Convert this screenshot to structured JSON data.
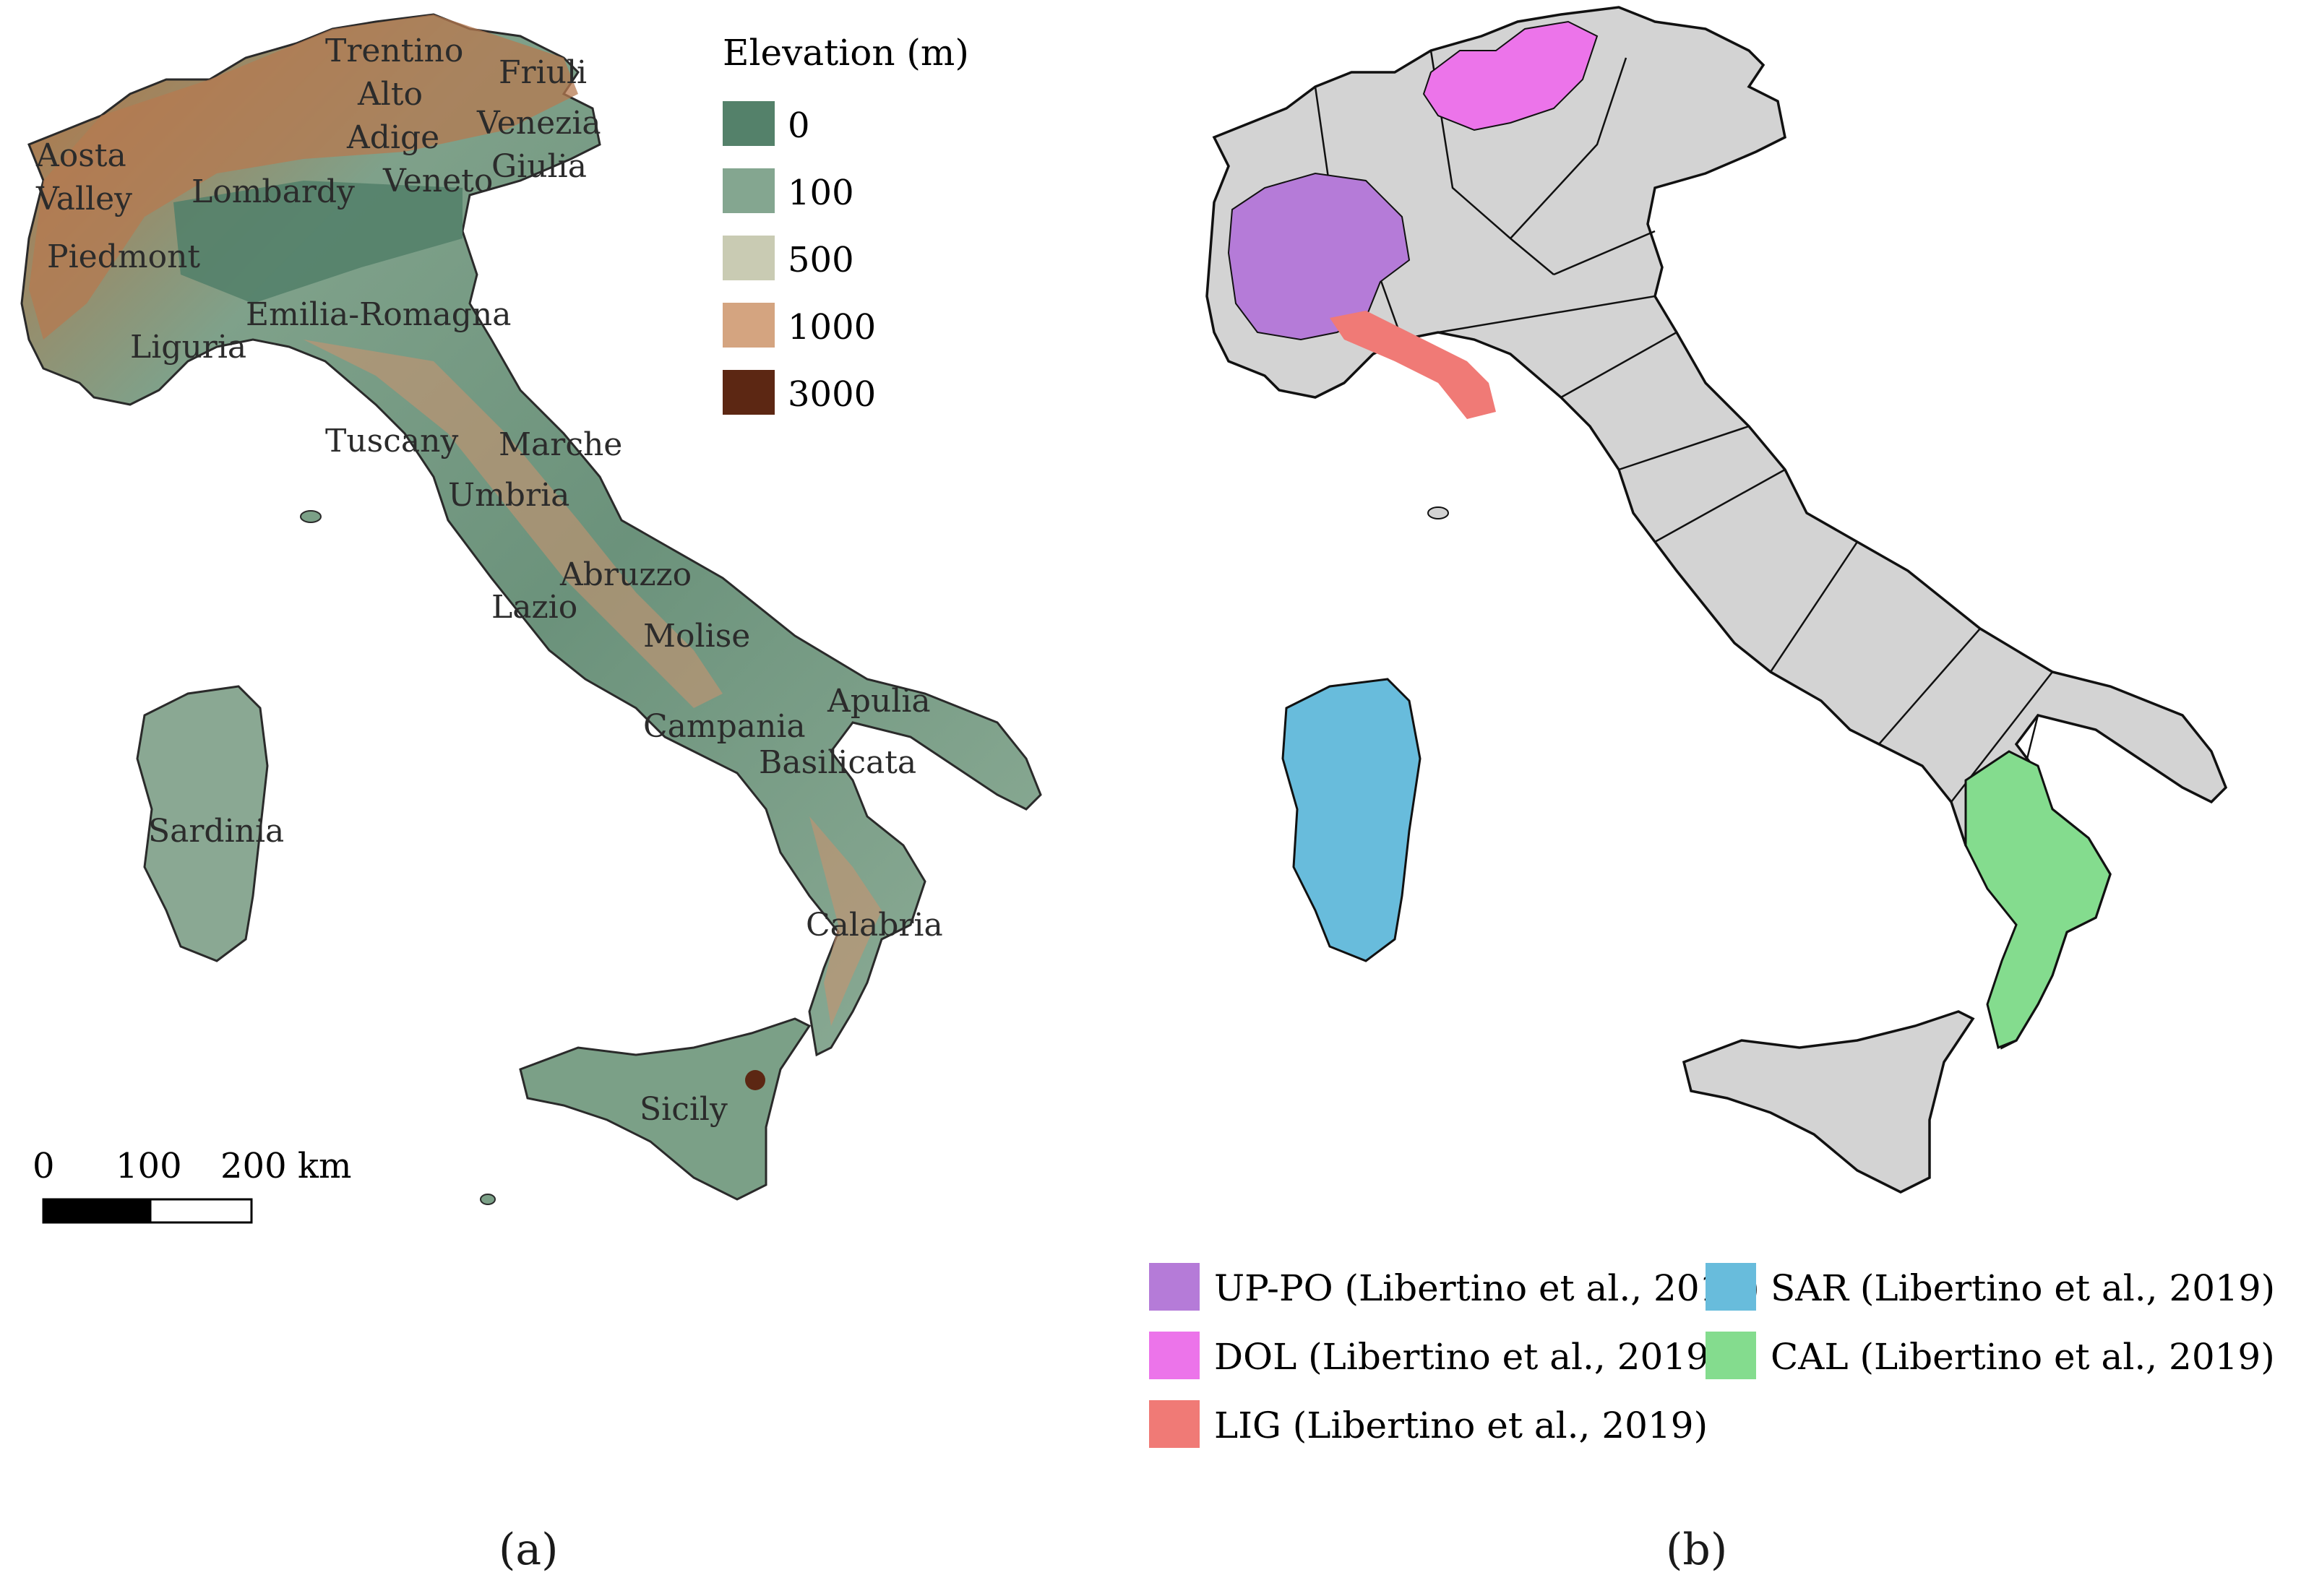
{
  "panel_a": {
    "caption": "(a)",
    "legend": {
      "title": "Elevation (m)",
      "items": [
        {
          "label": "0",
          "color": "#54816a"
        },
        {
          "label": "100",
          "color": "#84a690"
        },
        {
          "label": "500",
          "color": "#c9cbb3"
        },
        {
          "label": "1000",
          "color": "#d4a480"
        },
        {
          "label": "3000",
          "color": "#5c2713"
        }
      ]
    },
    "region_labels": [
      "Trentino",
      "Alto",
      "Adige",
      "Friuli",
      "Venezia",
      "Giulia",
      "Aosta",
      "Valley",
      "Lombardy",
      "Veneto",
      "Piedmont",
      "Emilia-Romagna",
      "Liguria",
      "Tuscany",
      "Marche",
      "Umbria",
      "Abruzzo",
      "Lazio",
      "Molise",
      "Apulia",
      "Campania",
      "Basilicata",
      "Sardinia",
      "Calabria",
      "Sicily"
    ],
    "scale_bar": {
      "ticks": [
        "0",
        "100",
        "200 km"
      ]
    }
  },
  "panel_b": {
    "caption": "(b)",
    "base_color": "#d3d3d3",
    "legend": [
      {
        "label": "UP-PO (Libertino et al., 2019)",
        "color": "#b57bd8"
      },
      {
        "label": "DOL (Libertino et al., 2019)",
        "color": "#ec74ea"
      },
      {
        "label": "LIG (Libertino et al., 2019)",
        "color": "#f07a76"
      },
      {
        "label": "SAR (Libertino et al., 2019)",
        "color": "#68bcdc"
      },
      {
        "label": "CAL (Libertino et al., 2019)",
        "color": "#84dc8e"
      }
    ]
  }
}
